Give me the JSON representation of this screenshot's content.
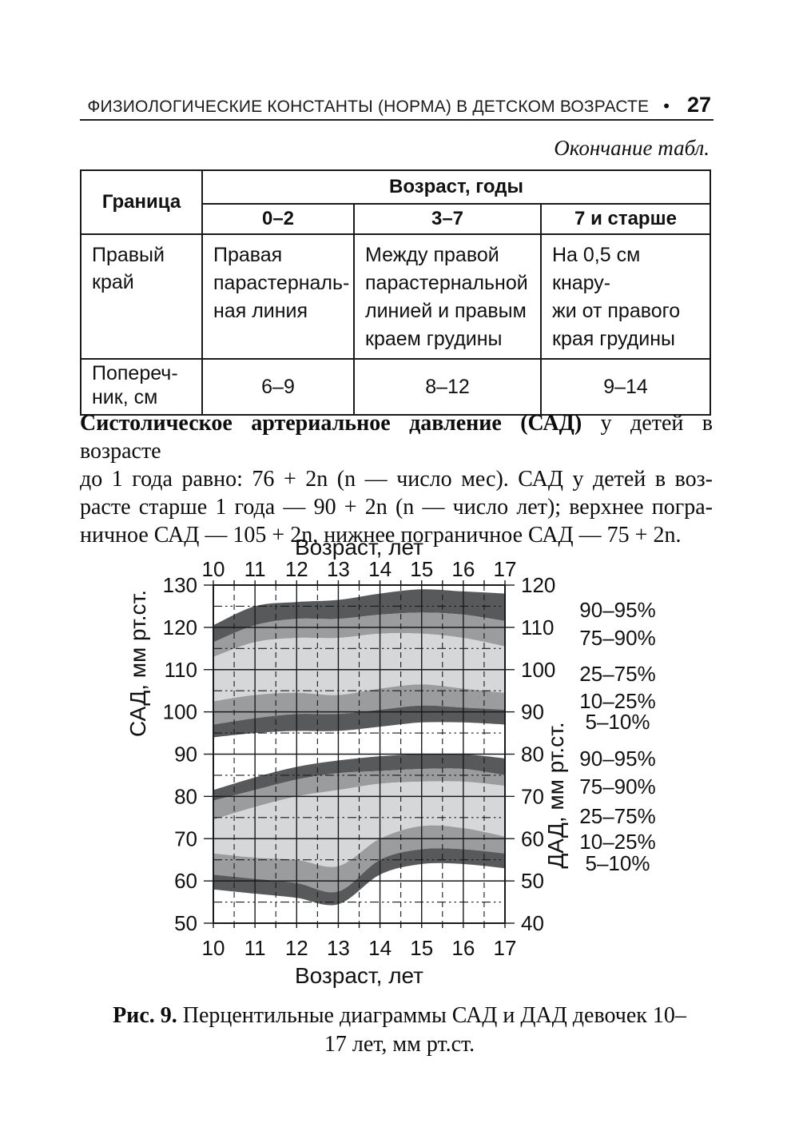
{
  "header": {
    "title": "ФИЗИОЛОГИЧЕСКИЕ КОНСТАНТЫ (НОРМА) В ДЕТСКОМ ВОЗРАСТЕ",
    "bullet": "•",
    "page_number": "27"
  },
  "table_note": "Окончание табл.",
  "table": {
    "corner": "Граница",
    "group": "Возраст, годы",
    "cols": [
      "0–2",
      "3–7",
      "7 и старше"
    ],
    "rows": [
      {
        "label": "Правый\nкрай",
        "cells": [
          "Правая\nпарастерналь-\nная линия",
          "Между правой\nпарастернальной\nлинией и правым\nкраем грудины",
          "На 0,5 см кнару-\nжи от правого\nкрая грудины"
        ]
      },
      {
        "label": "Попереч-\nник, см",
        "cells": [
          "6–9",
          "8–12",
          "9–14"
        ]
      }
    ]
  },
  "paragraph": {
    "lead_bold": "Систолическое артериальное давление",
    "abbr_bold": "(САД)",
    "line1_rest": "у детей в возрасте",
    "line2": "до 1 года равно: 76 + 2n (n — число мес). САД у детей в воз-",
    "line3": "расте старше 1 года — 90 + 2n (n — число лет); верхнее погра-",
    "line4": "ничное САД — 105 + 2n, нижнее пограничное САД — 75 + 2n."
  },
  "figure_caption": {
    "label": "Рис. 9.",
    "line1": "Перцентильные диаграммы САД и ДАД девочек 10–",
    "line2": "17 лет, мм рт.ст."
  },
  "chart_data": {
    "type": "area",
    "title": "Перцентильные диаграммы САД и ДАД девочек 10–17 лет, мм рт.ст.",
    "x_label_top": "Возраст, лет",
    "x_label_bottom": "Возраст, лет",
    "ages": [
      10,
      11,
      12,
      13,
      14,
      15,
      16,
      17
    ],
    "top_tick_labels": [
      "10",
      "11",
      "12",
      "13",
      "14",
      "15",
      "16",
      "17"
    ],
    "bottom_tick_labels": [
      "10",
      "11",
      "12",
      "13",
      "14",
      "15",
      "16",
      "17"
    ],
    "left_axis": {
      "label": "САД, мм рт.ст.",
      "min": 50,
      "max": 130,
      "major_ticks": [
        130,
        120,
        110,
        100,
        90,
        80,
        70,
        60,
        50
      ]
    },
    "right_axis": {
      "label": "ДАД, мм рт.ст.",
      "min": 40,
      "max": 120,
      "major_ticks": [
        120,
        110,
        100,
        90,
        80,
        70,
        60,
        50,
        40
      ]
    },
    "grid": {
      "major_step": 10,
      "minor_step": 5,
      "x_minor_step": 0.5
    },
    "sad_percentiles": {
      "p95": [
        120.5,
        125,
        126,
        126.5,
        128,
        129,
        128.5,
        128
      ],
      "p90": [
        116.5,
        120.5,
        122,
        122,
        123,
        123.5,
        123,
        121.5
      ],
      "p75": [
        113,
        116.5,
        117.5,
        117.5,
        118.5,
        118.5,
        117.5,
        115.5
      ],
      "p25": [
        102.5,
        104,
        104.5,
        104,
        105.5,
        106.5,
        105.5,
        104.5
      ],
      "p10": [
        97,
        98.5,
        99.5,
        99.5,
        100.5,
        101.5,
        101,
        100.5
      ],
      "p5": [
        94,
        95,
        95.5,
        95.5,
        96.5,
        97.5,
        97.5,
        97
      ]
    },
    "dad_percentiles": {
      "p95": [
        71.5,
        74.5,
        77,
        78.5,
        79.5,
        80,
        80,
        79
      ],
      "p90": [
        69,
        71.5,
        74,
        75.5,
        76,
        76.5,
        76.5,
        75
      ],
      "p75": [
        64.5,
        67.5,
        70,
        71.5,
        73,
        73.5,
        73.5,
        72.5
      ],
      "p25": [
        56.5,
        55.5,
        55,
        53.5,
        60,
        63,
        62.5,
        60.5
      ],
      "p10": [
        51.5,
        50.5,
        49.5,
        47.5,
        55,
        57.5,
        57.5,
        56.5
      ],
      "p5": [
        48,
        47,
        46,
        44.5,
        51.5,
        54,
        54,
        53
      ]
    },
    "bands": [
      {
        "from": "p95",
        "to": "p90",
        "label": "90–95%",
        "color_key": "dark"
      },
      {
        "from": "p90",
        "to": "p75",
        "label": "75–90%",
        "color_key": "medium"
      },
      {
        "from": "p75",
        "to": "p25",
        "label": "25–75%",
        "color_key": "light"
      },
      {
        "from": "p25",
        "to": "p10",
        "label": "10–25%",
        "color_key": "medium"
      },
      {
        "from": "p10",
        "to": "p5",
        "label": "5–10%",
        "color_key": "dark"
      }
    ],
    "legend_sad": [
      "90–95%",
      "75–90%",
      "25–75%",
      "10–25%",
      "5–10%"
    ],
    "legend_dad": [
      "90–95%",
      "75–90%",
      "25–75%",
      "10–25%",
      "5–10%"
    ],
    "colors": {
      "dark": "#58595b",
      "medium": "#9b9c9e",
      "light": "#d6d7d8",
      "grid": "#1a1a1a"
    }
  }
}
